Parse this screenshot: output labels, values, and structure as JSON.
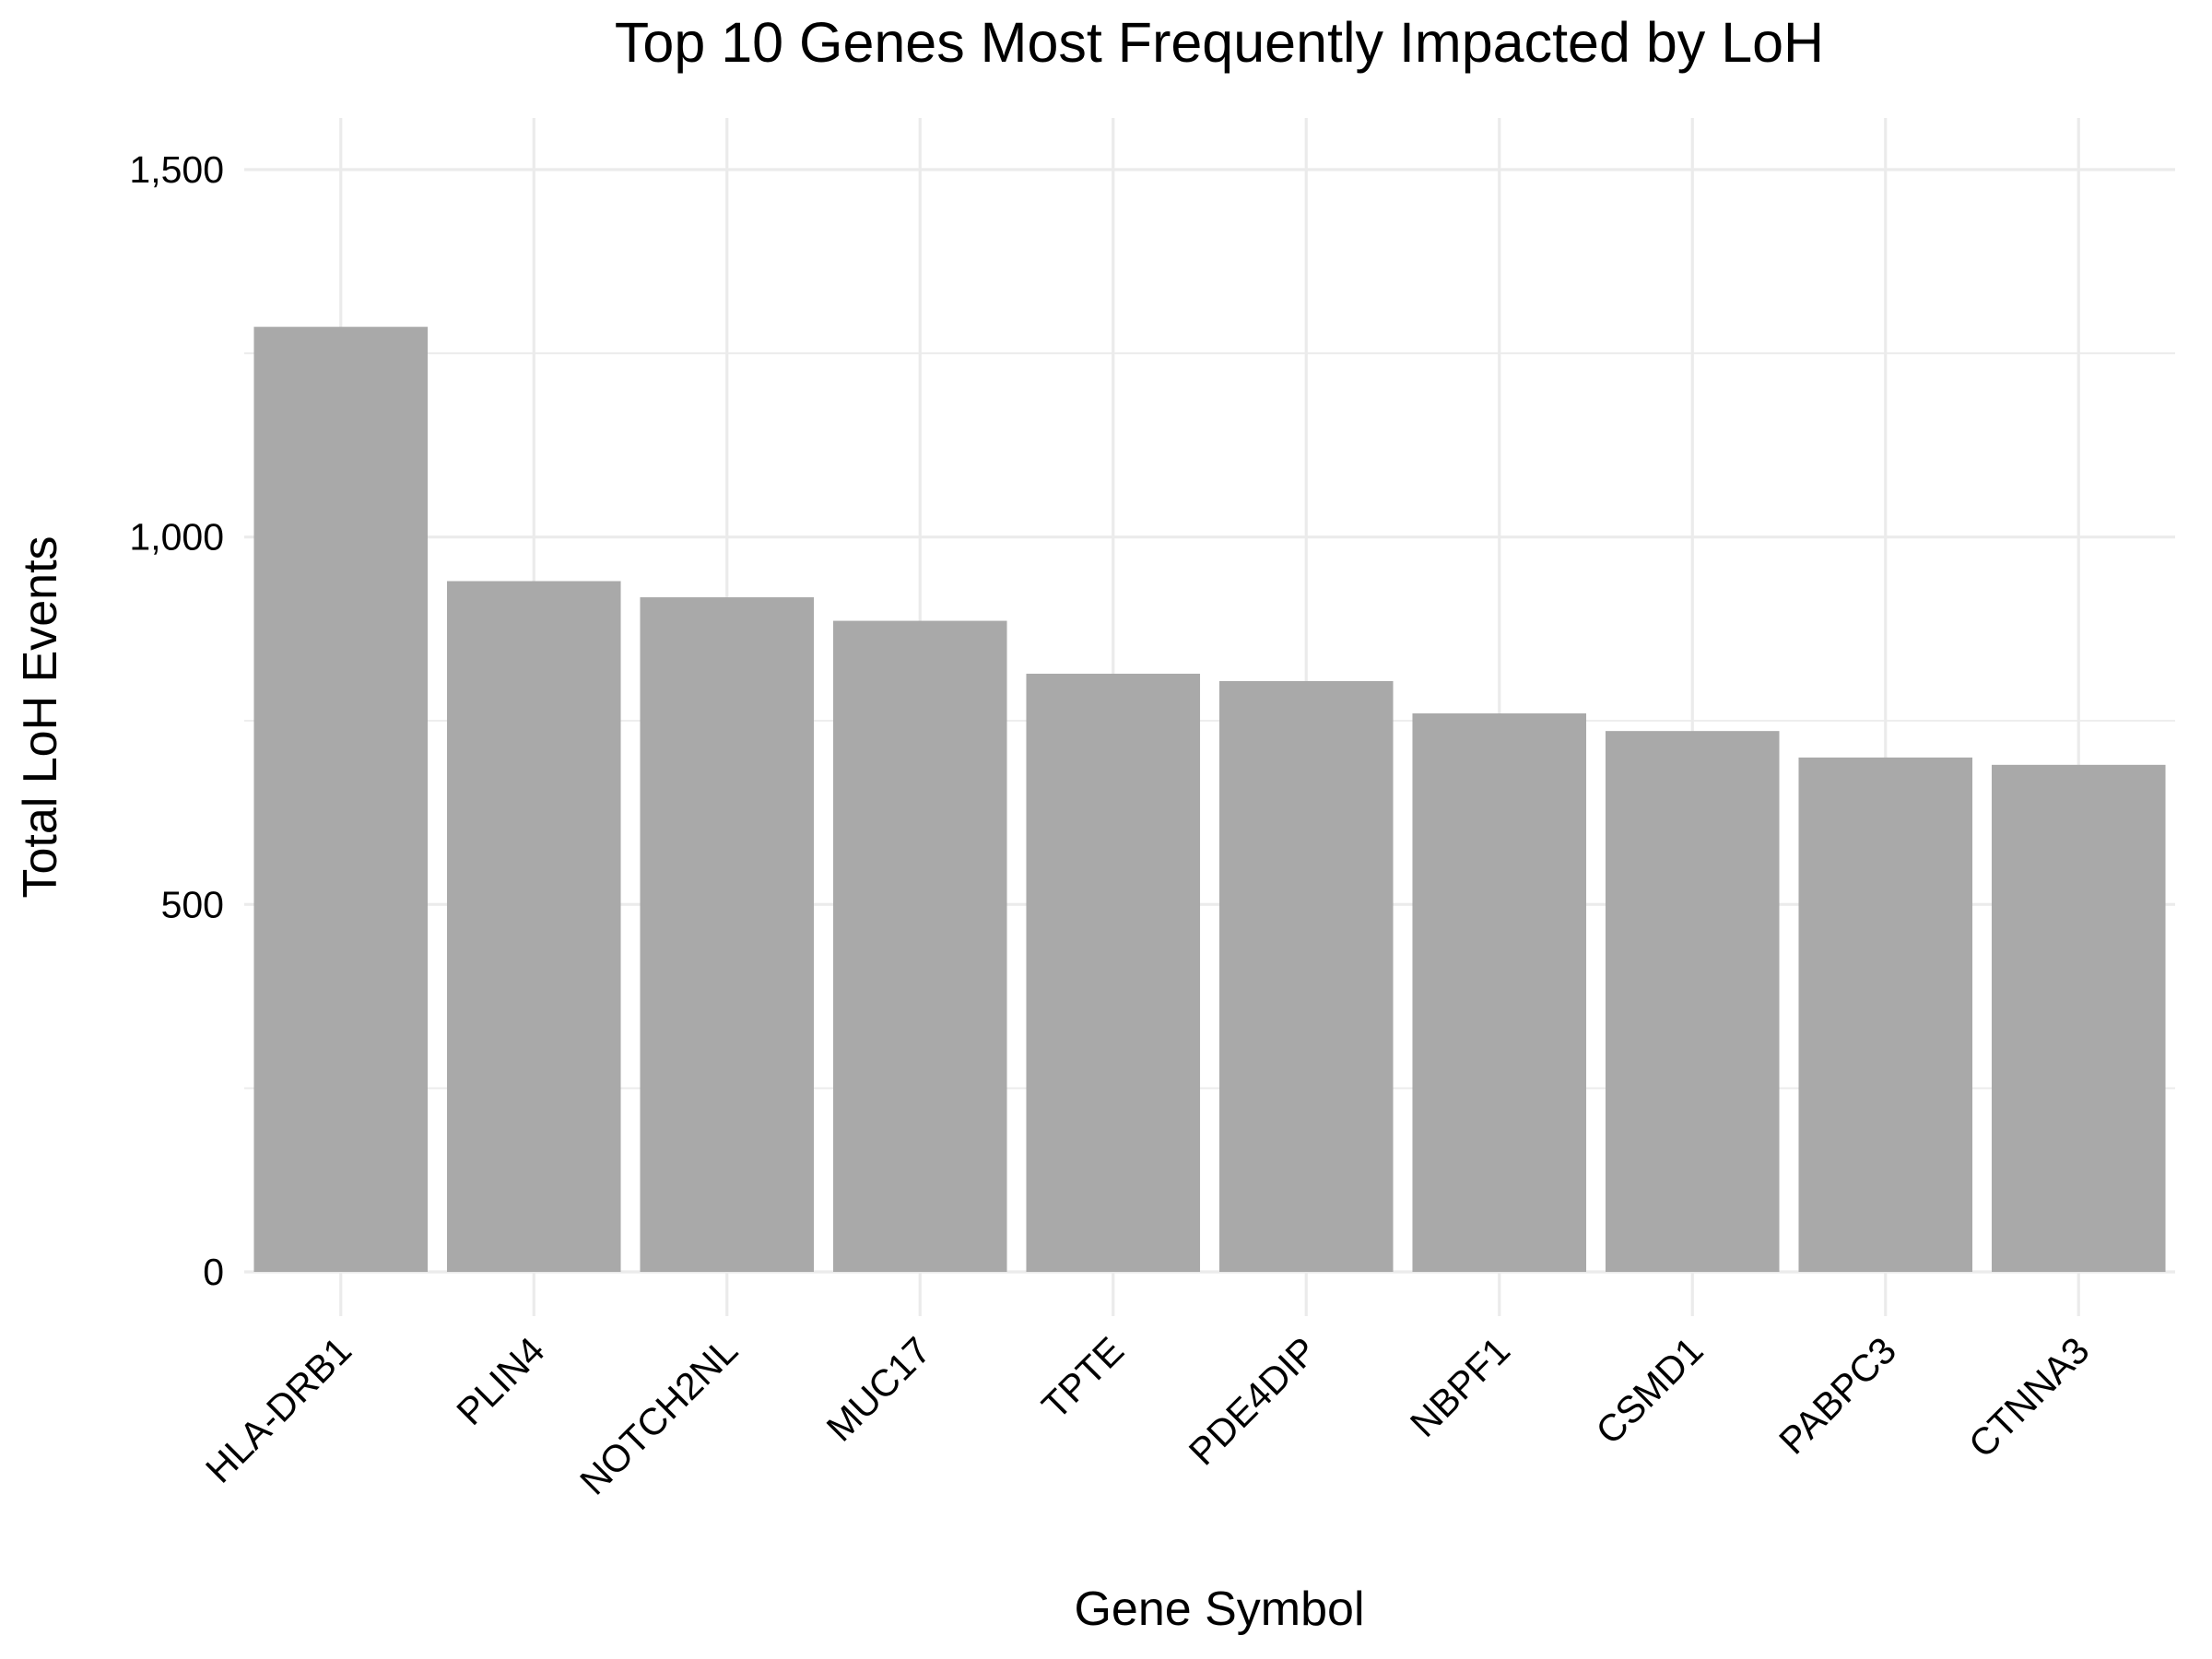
{
  "chart_data": {
    "type": "bar",
    "title": "Top 10 Genes Most Frequently Impacted by LoH",
    "xlabel": "Gene Symbol",
    "ylabel": "Total LoH Events",
    "categories": [
      "HLA-DRB1",
      "PLIN4",
      "NOTCH2NL",
      "MUC17",
      "TPTE",
      "PDE4DIP",
      "NBPF1",
      "CSMD1",
      "PABPC3",
      "CTNNA3"
    ],
    "values": [
      1286,
      940,
      918,
      886,
      814,
      804,
      760,
      736,
      700,
      690
    ],
    "ylim": [
      0,
      1560
    ],
    "yticks": [
      0,
      500,
      1000,
      1500
    ],
    "ytick_labels": [
      "0",
      "500",
      "1,000",
      "1,500"
    ],
    "grid": true,
    "bar_color": "#a9a9a9",
    "legend": "none"
  }
}
